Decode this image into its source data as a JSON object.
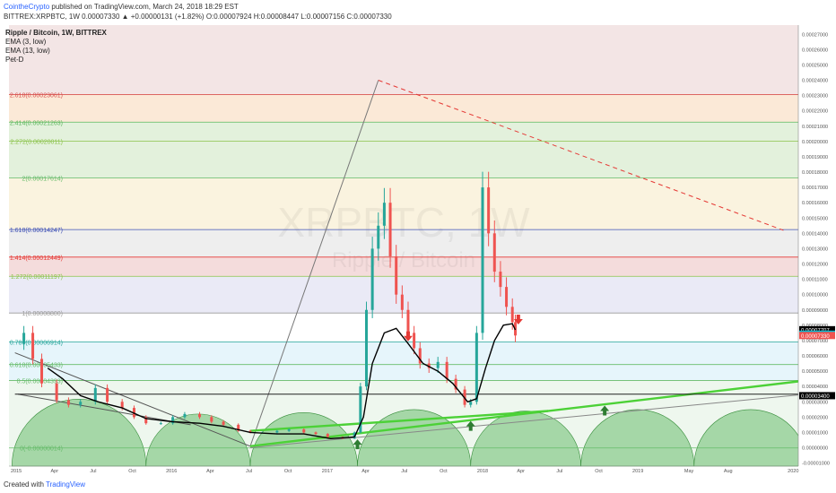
{
  "header": {
    "author": "CointheCrypto",
    "published": "published on TradingView.com, March 24, 2018 18:29 EST",
    "ohlc": "BITTREX:XRPBTC, 1W  0.00007330 ▲ +0.00000131 (+1.82%) O:0.00007924 H:0.00008447 L:0.00007156 C:0.00007330"
  },
  "legend": {
    "title": "Ripple / Bitcoin, 1W, BITTREX",
    "items": [
      "EMA (3, low)",
      "EMA (13, low)",
      "Pet-D"
    ]
  },
  "watermark": {
    "symbol": "XRPBTC, 1W",
    "name": "Ripple / Bitcoin"
  },
  "footer": {
    "created": "Created with",
    "brand": "TradingView"
  },
  "colors": {
    "up": "#26a69a",
    "down": "#ef5350",
    "ema13": "#000000",
    "ema3": "#00bcd4",
    "trend_green": "#4cd137",
    "red_dashed": "#e53935"
  },
  "chart_data": {
    "type": "line",
    "title": "Ripple / Bitcoin, 1W, BITTREX",
    "xlabel": "",
    "ylabel": "",
    "x_ticks": [
      "2015",
      "Apr",
      "Jul",
      "Oct",
      "2016",
      "Apr",
      "Jul",
      "Oct",
      "2017",
      "Apr",
      "Jul",
      "Oct",
      "2018",
      "Apr",
      "Jul",
      "Oct",
      "2019",
      "May",
      "Aug",
      "2020"
    ],
    "y_ticks": [
      "0.00027000",
      "0.00026000",
      "0.00025000",
      "0.00024000",
      "0.00023000",
      "0.00022000",
      "0.00021000",
      "0.00020000",
      "0.00019000",
      "0.00018000",
      "0.00017000",
      "0.00016000",
      "0.00015000",
      "0.00014000",
      "0.00013000",
      "0.00012000",
      "0.00011000",
      "0.00010000",
      "0.00009000",
      "0.00008000",
      "0.00007000",
      "0.00006000",
      "0.00005000",
      "0.00004000",
      "0.00003000",
      "0.00002000",
      "0.00001000",
      "0.00000000",
      "-0.00001000"
    ],
    "ylim": [
      -1.2e-05,
      0.000276
    ],
    "fib_levels": [
      {
        "label": "2.618(0.00023061)",
        "value": 0.00023061,
        "color": "#d9534f"
      },
      {
        "label": "2.414(0.00021263)",
        "value": 0.00021263,
        "color": "#5cb85c"
      },
      {
        "label": "2.272(0.00020011)",
        "value": 0.00020011,
        "color": "#8bc34a"
      },
      {
        "label": "2(0.00017614)",
        "value": 0.00017614,
        "color": "#66bb6a"
      },
      {
        "label": "1.618(0.00014247)",
        "value": 0.00014247,
        "color": "#3f51b5"
      },
      {
        "label": "1.414(0.00012449)",
        "value": 0.00012449,
        "color": "#e53935"
      },
      {
        "label": "1.272(0.00011197)",
        "value": 0.00011197,
        "color": "#8bc34a"
      },
      {
        "label": "1(0.00008800)",
        "value": 8.8e-05,
        "color": "#999999"
      },
      {
        "label": "0.786(0.00006914)",
        "value": 6.914e-05,
        "color": "#26a69a"
      },
      {
        "label": "0.618(0.00005433)",
        "value": 5.433e-05,
        "color": "#66bb6a"
      },
      {
        "label": "0.5(0.00004393)",
        "value": 4.393e-05,
        "color": "#66bb6a"
      },
      {
        "label": "0(-0.00000014)",
        "value": -1.4e-07,
        "color": "#66bb6a"
      }
    ],
    "fib_bands": [
      {
        "from": 0.00023061,
        "to": 0.000276,
        "color": "#f3e5e5"
      },
      {
        "from": 0.00021263,
        "to": 0.00023061,
        "color": "#fbe9d7"
      },
      {
        "from": 0.00017614,
        "to": 0.00021263,
        "color": "#e3f1dc"
      },
      {
        "from": 0.00014247,
        "to": 0.00017614,
        "color": "#faf3df"
      },
      {
        "from": 0.00012449,
        "to": 0.00014247,
        "color": "#eeeeee"
      },
      {
        "from": 0.00011197,
        "to": 0.00012449,
        "color": "#f4dcdc"
      },
      {
        "from": 8.8e-05,
        "to": 0.00011197,
        "color": "#eaeaf6"
      },
      {
        "from": 6.914e-05,
        "to": 8.8e-05,
        "color": "#ffffff"
      },
      {
        "from": 4.393e-05,
        "to": 6.914e-05,
        "color": "#e6f5fb"
      },
      {
        "from": -1.2e-05,
        "to": 4.393e-05,
        "color": "#eef7ee"
      }
    ],
    "price_labels": [
      {
        "text": "0.00007707",
        "value": 7.707e-05,
        "bg": "#000000"
      },
      {
        "text": "0.00007417",
        "value": 7.417e-05,
        "bg": "#00bcd4"
      },
      {
        "text": "0.00007330",
        "value": 7.33e-05,
        "bg": "#ef5350"
      },
      {
        "text": "0.00003400",
        "value": 3.4e-05,
        "bg": "#000000"
      }
    ],
    "series": [
      {
        "name": "XRPBTC",
        "points": [
          [
            "2014-12-29",
            6.8e-05
          ],
          [
            "2015-01-19",
            7.5e-05
          ],
          [
            "2015-02-09",
            5.8e-05
          ],
          [
            "2015-03-02",
            4.2e-05
          ],
          [
            "2015-04-06",
            3.1e-05
          ],
          [
            "2015-05-04",
            2.8e-05
          ],
          [
            "2015-06-01",
            3e-05
          ],
          [
            "2015-07-06",
            3.9e-05
          ],
          [
            "2015-08-03",
            3e-05
          ],
          [
            "2015-09-07",
            2.6e-05
          ],
          [
            "2015-10-05",
            2e-05
          ],
          [
            "2015-11-02",
            1.6e-05
          ],
          [
            "2015-12-07",
            1.6e-05
          ],
          [
            "2016-01-04",
            2e-05
          ],
          [
            "2016-02-01",
            2.2e-05
          ],
          [
            "2016-03-07",
            2e-05
          ],
          [
            "2016-04-04",
            1.7e-05
          ],
          [
            "2016-05-02",
            1.5e-05
          ],
          [
            "2016-06-06",
            1.1e-05
          ],
          [
            "2016-07-04",
            1e-05
          ],
          [
            "2016-08-01",
            1e-05
          ],
          [
            "2016-09-05",
            1.1e-05
          ],
          [
            "2016-10-03",
            1.2e-05
          ],
          [
            "2016-11-07",
            1e-05
          ],
          [
            "2016-12-05",
            9e-06
          ],
          [
            "2017-01-02",
            7e-06
          ],
          [
            "2017-02-06",
            6e-06
          ],
          [
            "2017-03-06",
            1e-05
          ],
          [
            "2017-03-20",
            4e-05
          ],
          [
            "2017-04-03",
            9e-05
          ],
          [
            "2017-04-17",
            0.00013
          ],
          [
            "2017-05-01",
            0.000145
          ],
          [
            "2017-05-15",
            0.00016
          ],
          [
            "2017-05-29",
            0.000125
          ],
          [
            "2017-06-12",
            0.0001
          ],
          [
            "2017-06-26",
            9e-05
          ],
          [
            "2017-07-10",
            7.5e-05
          ],
          [
            "2017-07-24",
            6.5e-05
          ],
          [
            "2017-08-07",
            5.5e-05
          ],
          [
            "2017-08-28",
            5.2e-05
          ],
          [
            "2017-09-18",
            5.6e-05
          ],
          [
            "2017-10-09",
            4.5e-05
          ],
          [
            "2017-10-30",
            3.8e-05
          ],
          [
            "2017-11-20",
            2.8e-05
          ],
          [
            "2017-12-04",
            3e-05
          ],
          [
            "2017-12-18",
            7.5e-05
          ],
          [
            "2018-01-01",
            0.00017
          ],
          [
            "2018-01-15",
            0.00014
          ],
          [
            "2018-01-29",
            0.000115
          ],
          [
            "2018-02-12",
            0.000105
          ],
          [
            "2018-02-26",
            9.2e-05
          ],
          [
            "2018-03-12",
            8.2e-05
          ],
          [
            "2018-03-19",
            7.33e-05
          ]
        ]
      },
      {
        "name": "EMA (13, low)",
        "points": [
          [
            "2015-03-16",
            5.2e-05
          ],
          [
            "2015-04-20",
            4.5e-05
          ],
          [
            "2015-06-01",
            3.4e-05
          ],
          [
            "2015-07-13",
            3e-05
          ],
          [
            "2015-09-07",
            2.6e-05
          ],
          [
            "2015-11-02",
            1.9e-05
          ],
          [
            "2016-01-04",
            1.7e-05
          ],
          [
            "2016-03-07",
            1.6e-05
          ],
          [
            "2016-05-02",
            1.4e-05
          ],
          [
            "2016-07-04",
            1e-05
          ],
          [
            "2016-09-05",
            9e-06
          ],
          [
            "2016-11-07",
            9e-06
          ],
          [
            "2017-01-09",
            6e-06
          ],
          [
            "2017-03-06",
            7e-06
          ],
          [
            "2017-03-27",
            2e-05
          ],
          [
            "2017-04-17",
            5.5e-05
          ],
          [
            "2017-05-15",
            7.5e-05
          ],
          [
            "2017-06-12",
            7.8e-05
          ],
          [
            "2017-07-10",
            6.8e-05
          ],
          [
            "2017-08-14",
            5.5e-05
          ],
          [
            "2017-09-18",
            5e-05
          ],
          [
            "2017-10-23",
            4.2e-05
          ],
          [
            "2017-11-27",
            3e-05
          ],
          [
            "2017-12-18",
            3.2e-05
          ],
          [
            "2018-01-08",
            5.2e-05
          ],
          [
            "2018-01-29",
            7e-05
          ],
          [
            "2018-02-19",
            8e-05
          ],
          [
            "2018-03-12",
            8.1e-05
          ],
          [
            "2018-03-19",
            7.7e-05
          ]
        ]
      }
    ],
    "trendlines": [
      {
        "from": [
          "2014-12-29",
          6.2e-05
        ],
        "to": [
          "2016-07-04",
          1e-06
        ],
        "color": "#555555",
        "dash": false
      },
      {
        "from": [
          "2015-01-05",
          3.5e-05
        ],
        "to": [
          "2016-02-15",
          1.5e-05
        ],
        "color": "#555555",
        "dash": false
      },
      {
        "from": [
          "2016-07-04",
          1e-06
        ],
        "to": [
          "2017-05-01",
          0.00024
        ],
        "color": "#777777",
        "dash": false
      },
      {
        "from": [
          "2017-05-01",
          0.00024
        ],
        "to": [
          "2019-12-09",
          0.000142
        ],
        "color": "#e53935",
        "dash": true
      },
      {
        "from": [
          "2016-07-04",
          1e-06
        ],
        "to": [
          "2020-02-03",
          4.4e-05
        ],
        "color": "#4cd137",
        "dash": false
      },
      {
        "from": [
          "2016-07-04",
          1.1e-05
        ],
        "to": [
          "2018-06-04",
          2.4e-05
        ],
        "color": "#4cd137",
        "dash": false
      },
      {
        "from": [
          "2016-07-04",
          0.0
        ],
        "to": [
          "2020-02-03",
          3.5e-05
        ],
        "color": "#888888",
        "dash": false
      },
      {
        "from": [
          "2014-12-29",
          3.5e-05
        ],
        "to": [
          "2020-02-03",
          3.5e-05
        ],
        "color": "#222222",
        "dash": false
      }
    ],
    "arrows": [
      {
        "date": "2017-03-13",
        "value": 2e-06,
        "dir": "up"
      },
      {
        "date": "2017-07-10",
        "value": 7.3e-05,
        "dir": "down"
      },
      {
        "date": "2017-12-04",
        "value": 1.4e-05,
        "dir": "up"
      },
      {
        "date": "2018-03-26",
        "value": 8.4e-05,
        "dir": "down"
      },
      {
        "date": "2018-10-15",
        "value": 2.4e-05,
        "dir": "up"
      }
    ],
    "cycles": [
      {
        "start": "2014-12-22",
        "end": "2015-11-02"
      },
      {
        "start": "2015-11-02",
        "end": "2016-07-04"
      },
      {
        "start": "2016-07-04",
        "end": "2017-03-13"
      },
      {
        "start": "2017-03-13",
        "end": "2017-12-04"
      },
      {
        "start": "2017-12-04",
        "end": "2018-08-20"
      },
      {
        "start": "2018-08-20",
        "end": "2019-05-13"
      },
      {
        "start": "2019-05-13",
        "end": "2020-02-03"
      }
    ],
    "grid": false,
    "legend_position": "top-left"
  }
}
